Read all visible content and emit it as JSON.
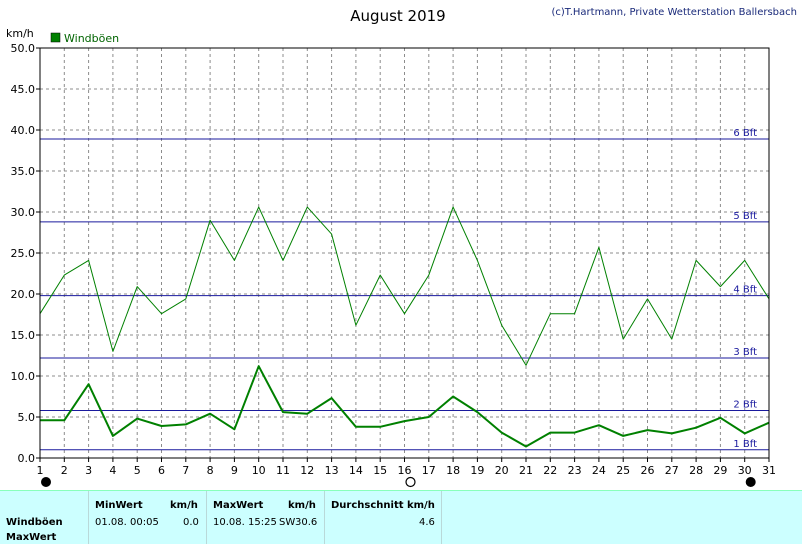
{
  "header": {
    "title": "August 2019",
    "copyright": "(c)T.Hartmann, Private Wetterstation Ballersbach",
    "y_unit": "km/h"
  },
  "legend": {
    "label": "Windböen",
    "color": "#008000"
  },
  "beaufort": [
    {
      "label": "1 Bft",
      "value": 1.0
    },
    {
      "label": "2 Bft",
      "value": 5.8
    },
    {
      "label": "3 Bft",
      "value": 12.2
    },
    {
      "label": "4 Bft",
      "value": 19.8
    },
    {
      "label": "5 Bft",
      "value": 28.8
    },
    {
      "label": "6 Bft",
      "value": 38.9
    }
  ],
  "chart_data": {
    "type": "line",
    "title": "August 2019",
    "ylabel": "km/h",
    "xlim": [
      1,
      31
    ],
    "ylim": [
      0,
      50
    ],
    "yticks": [
      "0.0",
      "5.0",
      "10.0",
      "15.0",
      "20.0",
      "25.0",
      "30.0",
      "35.0",
      "40.0",
      "45.0",
      "50.0"
    ],
    "x": [
      1,
      2,
      3,
      4,
      5,
      6,
      7,
      8,
      9,
      10,
      11,
      12,
      13,
      14,
      15,
      16,
      17,
      18,
      19,
      20,
      21,
      22,
      23,
      24,
      25,
      26,
      27,
      28,
      29,
      30,
      31
    ],
    "grid": true,
    "legend_position": "top-left",
    "series": [
      {
        "name": "Windböen",
        "color": "#008000",
        "width": 1,
        "values": [
          17.6,
          22.3,
          24.1,
          13.0,
          20.9,
          17.6,
          19.4,
          29.0,
          24.1,
          30.6,
          24.1,
          30.6,
          27.3,
          16.2,
          22.3,
          17.6,
          22.3,
          30.6,
          24.1,
          16.2,
          11.3,
          17.6,
          17.6,
          25.7,
          14.5,
          19.4,
          14.5,
          24.1,
          20.9,
          24.1,
          19.4
        ]
      },
      {
        "series_role": "average",
        "color": "#008000",
        "width": 2,
        "values": [
          4.6,
          4.6,
          9.0,
          2.7,
          4.8,
          3.9,
          4.1,
          5.4,
          3.5,
          11.2,
          5.6,
          5.4,
          7.3,
          3.8,
          3.8,
          4.5,
          5.0,
          7.5,
          5.6,
          3.1,
          1.4,
          3.1,
          3.1,
          4.0,
          2.7,
          3.4,
          3.0,
          3.7,
          4.9,
          3.0,
          4.3
        ]
      }
    ],
    "markers": [
      {
        "x": 1,
        "symbol": "filled-circle"
      },
      {
        "x": 16,
        "symbol": "open-circle"
      },
      {
        "x": 30,
        "symbol": "filled-circle"
      }
    ]
  },
  "footer": {
    "row1": "Windböen",
    "row2": "MaxWert",
    "min_header": "MinWert",
    "min_unit": "km/h",
    "min_time": "01.08.  00:05",
    "min_value": "0.0",
    "max_header": "MaxWert",
    "max_unit": "km/h",
    "max_time": "10.08.  15:25",
    "max_dir": "SW",
    "max_value": "30.6",
    "avg_header": "Durchschnitt km/h",
    "avg_value": "4.6"
  }
}
